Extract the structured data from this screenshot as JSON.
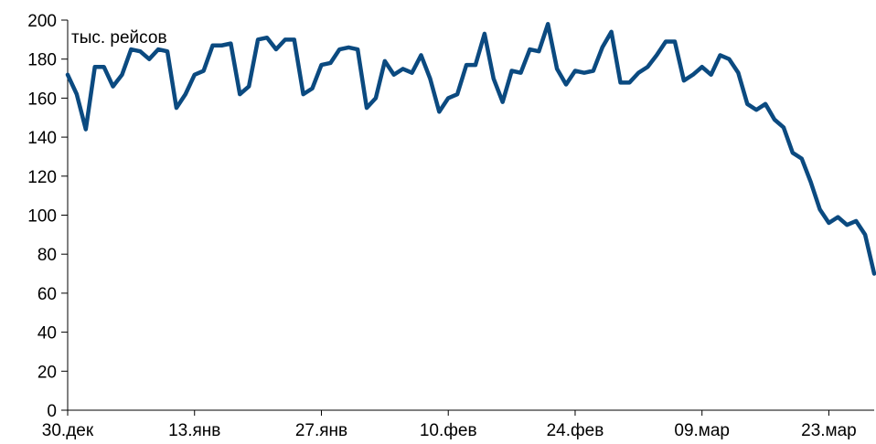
{
  "chart_data": {
    "type": "line",
    "title": "",
    "xlabel": "",
    "ylabel": "",
    "unit_label": "тыс. рейсов",
    "ylim": [
      0,
      200
    ],
    "y_ticks": [
      0,
      20,
      40,
      60,
      80,
      100,
      120,
      140,
      160,
      180,
      200
    ],
    "x_ticks": [
      "30.дек",
      "13.янв",
      "27.янв",
      "10.фев",
      "24.фев",
      "09.мар",
      "23.мар"
    ],
    "x_tick_index": [
      0,
      14,
      28,
      42,
      56,
      70,
      84
    ],
    "grid": false,
    "legend": "none",
    "line_color": "#0b4a80",
    "series": [
      {
        "values": [
          172,
          162,
          144,
          176,
          176,
          166,
          172,
          185,
          184,
          180,
          185,
          184,
          155,
          162,
          172,
          174,
          187,
          187,
          188,
          162,
          166,
          190,
          191,
          185,
          190,
          190,
          162,
          165,
          177,
          178,
          185,
          186,
          185,
          155,
          160,
          179,
          172,
          175,
          173,
          182,
          170,
          153,
          160,
          162,
          177,
          177,
          193,
          170,
          158,
          174,
          173,
          185,
          184,
          198,
          175,
          167,
          174,
          173,
          174,
          186,
          194,
          168,
          168,
          173,
          176,
          182,
          189,
          189,
          169,
          172,
          176,
          172,
          182,
          180,
          173,
          157,
          154,
          157,
          149,
          145,
          132,
          129,
          117,
          103,
          96,
          99,
          95,
          97,
          90,
          70
        ]
      }
    ]
  }
}
